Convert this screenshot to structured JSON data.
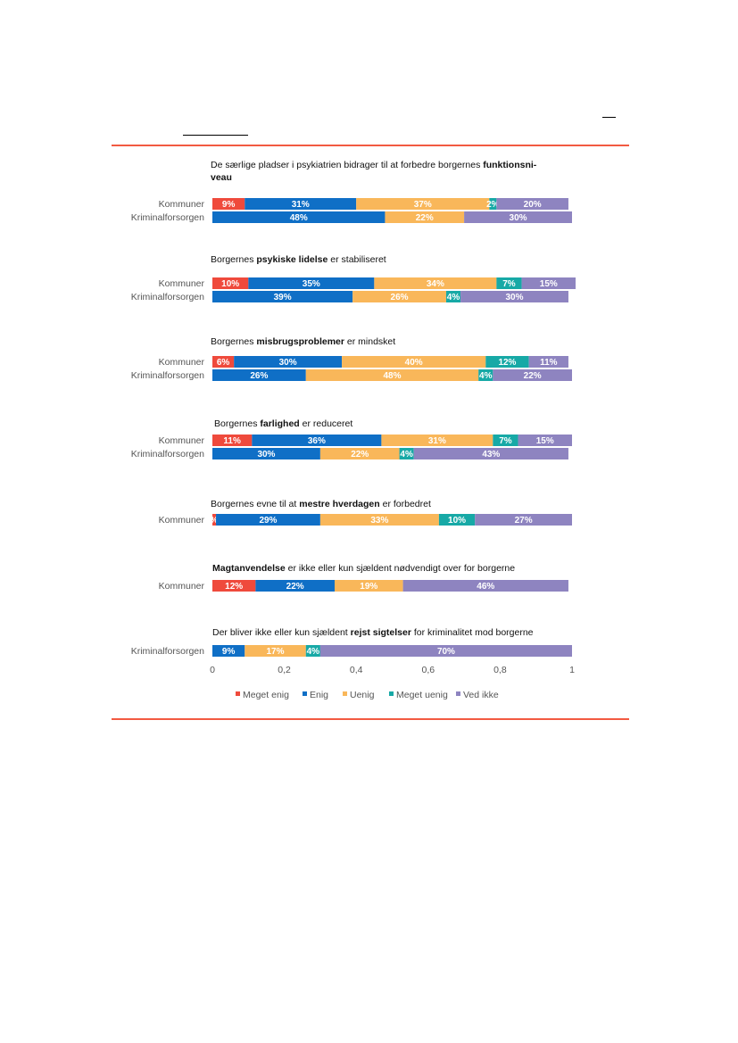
{
  "colors": {
    "meget_enig": "#ef4a3c",
    "enig": "#0f6fc6",
    "uenig": "#f9b75a",
    "meget_uenig": "#17a9a6",
    "ved_ikke": "#8e84c0",
    "accent_line": "#f25a41"
  },
  "chart_data": {
    "type": "bar",
    "orientation": "horizontal",
    "stacked": true,
    "xlim": [
      0,
      1
    ],
    "x_ticks": [
      "0",
      "0,2",
      "0,4",
      "0,6",
      "0,8",
      "1"
    ],
    "legend": {
      "placement": "bottom",
      "entries": [
        "Meget enig",
        "Enig",
        "Uenig",
        "Meget uenig",
        "Ved ikke"
      ]
    },
    "panels": [
      {
        "title_parts": [
          {
            "text": "De særlige pladser i psykiatrien bidrager til at forbedre borgernes ",
            "bold": false
          },
          {
            "text": "funktionsni-",
            "bold": true
          }
        ],
        "title_line2": [
          {
            "text": "veau",
            "bold": true
          }
        ],
        "rows": [
          {
            "label": "Kommuner",
            "values": [
              0.09,
              0.31,
              0.37,
              0.02,
              0.2
            ],
            "labels": [
              "9%",
              "31%",
              "37%",
              "2%",
              "20%"
            ]
          },
          {
            "label": "Kriminalforsorgen",
            "values": [
              0.0,
              0.48,
              0.22,
              0.0,
              0.3
            ],
            "labels": [
              "",
              "48%",
              "22%",
              "",
              "30%"
            ]
          }
        ]
      },
      {
        "title_parts": [
          {
            "text": "Borgernes ",
            "bold": false
          },
          {
            "text": "psykiske lidelse",
            "bold": true
          },
          {
            "text": " er stabiliseret",
            "bold": false
          }
        ],
        "rows": [
          {
            "label": "Kommuner",
            "values": [
              0.1,
              0.35,
              0.34,
              0.07,
              0.15
            ],
            "labels": [
              "10%",
              "35%",
              "34%",
              "7%",
              "15%"
            ]
          },
          {
            "label": "Kriminalforsorgen",
            "values": [
              0.0,
              0.39,
              0.26,
              0.04,
              0.3
            ],
            "labels": [
              "",
              "39%",
              "26%",
              "4%",
              "30%"
            ]
          }
        ]
      },
      {
        "title_parts": [
          {
            "text": "Borgernes ",
            "bold": false
          },
          {
            "text": "misbrugsproblemer",
            "bold": true
          },
          {
            "text": " er mindsket",
            "bold": false
          }
        ],
        "rows": [
          {
            "label": "Kommuner",
            "values": [
              0.06,
              0.3,
              0.4,
              0.12,
              0.11
            ],
            "labels": [
              "6%",
              "30%",
              "40%",
              "12%",
              "11%"
            ]
          },
          {
            "label": "Kriminalforsorgen",
            "values": [
              0.0,
              0.26,
              0.48,
              0.04,
              0.22
            ],
            "labels": [
              "",
              "26%",
              "48%",
              "4%",
              "22%"
            ]
          }
        ]
      },
      {
        "title_parts": [
          {
            "text": "Borgernes ",
            "bold": false
          },
          {
            "text": "farlighed",
            "bold": true
          },
          {
            "text": " er reduceret",
            "bold": false
          }
        ],
        "rows": [
          {
            "label": "Kommuner",
            "values": [
              0.11,
              0.36,
              0.31,
              0.07,
              0.15
            ],
            "labels": [
              "11%",
              "36%",
              "31%",
              "7%",
              "15%"
            ]
          },
          {
            "label": "Kriminalforsorgen",
            "values": [
              0.0,
              0.3,
              0.22,
              0.04,
              0.43
            ],
            "labels": [
              "",
              "30%",
              "22%",
              "4%",
              "43%"
            ]
          }
        ]
      },
      {
        "title_parts": [
          {
            "text": "Borgernes evne til at ",
            "bold": false
          },
          {
            "text": "mestre hverdagen",
            "bold": true
          },
          {
            "text": " er forbedret",
            "bold": false
          }
        ],
        "rows": [
          {
            "label": "Kommuner",
            "values": [
              0.01,
              0.29,
              0.33,
              0.1,
              0.27
            ],
            "labels": [
              "%",
              "29%",
              "33%",
              "10%",
              "27%"
            ]
          }
        ]
      },
      {
        "title_parts": [
          {
            "text": "Magtanvendelse",
            "bold": true
          },
          {
            "text": " er ikke eller kun sjældent nødvendigt over for borgerne",
            "bold": false
          }
        ],
        "rows": [
          {
            "label": "Kommuner",
            "values": [
              0.12,
              0.22,
              0.19,
              0.0,
              0.46
            ],
            "labels": [
              "12%",
              "22%",
              "19%",
              "",
              "46%"
            ]
          }
        ]
      },
      {
        "title_parts": [
          {
            "text": "Der bliver ikke eller kun sjældent ",
            "bold": false
          },
          {
            "text": "rejst sigtelser",
            "bold": true
          },
          {
            "text": " for kriminalitet mod borgerne",
            "bold": false
          }
        ],
        "rows": [
          {
            "label": "Kriminalforsorgen",
            "values": [
              0.0,
              0.09,
              0.17,
              0.04,
              0.7
            ],
            "labels": [
              "",
              "9%",
              "17%",
              "4%",
              "70%"
            ]
          }
        ]
      }
    ]
  }
}
